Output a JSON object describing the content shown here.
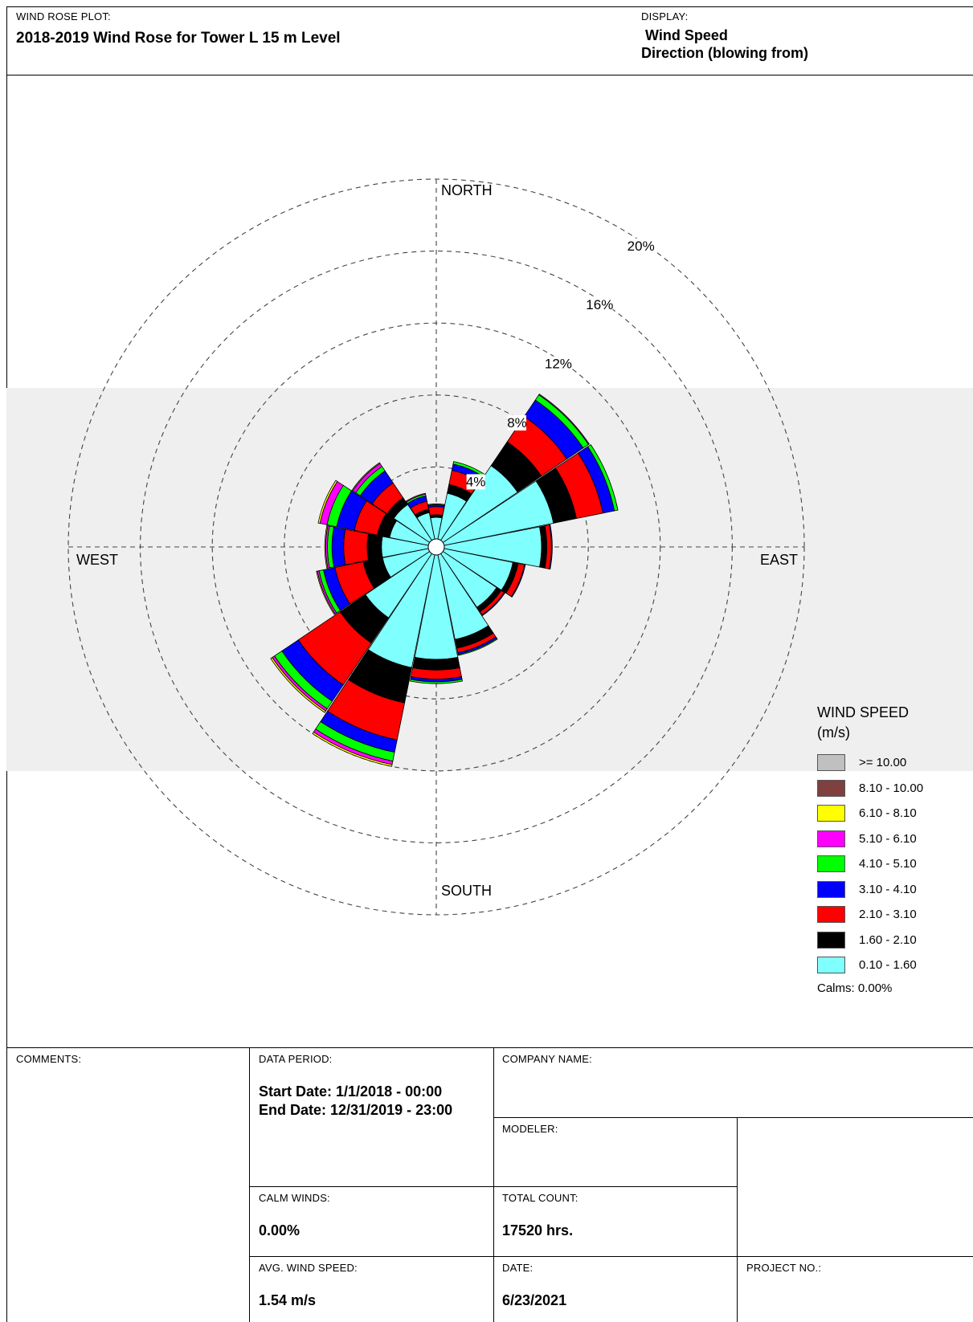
{
  "header": {
    "plot_caption": "WIND ROSE PLOT:",
    "plot_title": "2018-2019 Wind Rose for Tower L 15 m Level",
    "display_caption": "DISPLAY:",
    "display_line1": "Wind Speed",
    "display_line2": "Direction (blowing from)"
  },
  "footer": {
    "comments_caption": "COMMENTS:",
    "data_period_caption": "DATA PERIOD:",
    "start_date": "Start Date: 1/1/2018 - 00:00",
    "end_date": "End Date: 12/31/2019 - 23:00",
    "company_caption": "COMPANY NAME:",
    "modeler_caption": "MODELER:",
    "calm_caption": "CALM WINDS:",
    "calm_value": "0.00%",
    "count_caption": "TOTAL COUNT:",
    "count_value": "17520 hrs.",
    "avg_caption": "AVG. WIND SPEED:",
    "avg_value": "1.54 m/s",
    "date_caption": "DATE:",
    "date_value": "6/23/2021",
    "project_caption": "PROJECT NO.:"
  },
  "chart_data": {
    "type": "wind-rose",
    "compass_labels": [
      "NORTH",
      "EAST",
      "SOUTH",
      "WEST"
    ],
    "ring_values": [
      4,
      8,
      12,
      16,
      20
    ],
    "ring_labels": [
      "4%",
      "8%",
      "12%",
      "16%",
      "20%"
    ],
    "legend_title_line1": "WIND SPEED",
    "legend_title_line2": "(m/s)",
    "calms_label": "Calms: 0.00%",
    "bins": [
      {
        "label": "0.10 - 1.60",
        "color": "#80FFFF"
      },
      {
        "label": "1.60 - 2.10",
        "color": "#000000"
      },
      {
        "label": "2.10 - 3.10",
        "color": "#FF0000"
      },
      {
        "label": "3.10 - 4.10",
        "color": "#0000FF"
      },
      {
        "label": "4.10 - 5.10",
        "color": "#00FF00"
      },
      {
        "label": "5.10 - 6.10",
        "color": "#FF00FF"
      },
      {
        "label": "6.10 - 8.10",
        "color": "#FFFF00"
      },
      {
        "label": "8.10 - 10.00",
        "color": "#804040"
      },
      {
        "label": ">= 10.00",
        "color": "#C0C0C0"
      }
    ],
    "legend_order": [
      8,
      7,
      6,
      5,
      4,
      3,
      2,
      1,
      0
    ],
    "directions": [
      "N",
      "NNE",
      "NE",
      "ENE",
      "E",
      "ESE",
      "SE",
      "SSE",
      "S",
      "SSW",
      "SW",
      "WSW",
      "W",
      "WNW",
      "NW",
      "NNW"
    ],
    "petals": [
      {
        "dir": "N",
        "values": [
          1.2,
          0.15,
          0.45,
          0.1,
          0.05,
          0,
          0,
          0,
          0
        ]
      },
      {
        "dir": "NNE",
        "values": [
          2.6,
          0.5,
          0.8,
          0.35,
          0.15,
          0,
          0,
          0,
          0
        ]
      },
      {
        "dir": "NE",
        "values": [
          5.0,
          1.6,
          1.7,
          1.1,
          0.35,
          0.05,
          0,
          0,
          0
        ]
      },
      {
        "dir": "ENE",
        "values": [
          6.2,
          1.3,
          1.5,
          0.65,
          0.2,
          0,
          0,
          0,
          0
        ]
      },
      {
        "dir": "E",
        "values": [
          5.4,
          0.3,
          0.25,
          0.05,
          0,
          0,
          0,
          0,
          0
        ]
      },
      {
        "dir": "ESE",
        "values": [
          3.9,
          0.3,
          0.35,
          0.05,
          0,
          0,
          0,
          0,
          0
        ]
      },
      {
        "dir": "SE",
        "values": [
          3.6,
          0.3,
          0.2,
          0.05,
          0,
          0,
          0,
          0,
          0
        ]
      },
      {
        "dir": "SSE",
        "values": [
          4.8,
          0.5,
          0.25,
          0.1,
          0.05,
          0,
          0,
          0,
          0
        ]
      },
      {
        "dir": "S",
        "values": [
          5.8,
          0.6,
          0.5,
          0.15,
          0.1,
          0,
          0,
          0,
          0
        ]
      },
      {
        "dir": "SSW",
        "values": [
          6.4,
          2.0,
          2.1,
          0.7,
          0.5,
          0.2,
          0.1,
          0,
          0
        ]
      },
      {
        "dir": "SW",
        "values": [
          4.3,
          1.7,
          2.8,
          1.1,
          0.5,
          0.15,
          0.1,
          0,
          0
        ]
      },
      {
        "dir": "WSW",
        "values": [
          2.6,
          1.1,
          1.6,
          0.65,
          0.25,
          0.1,
          0.05,
          0,
          0
        ]
      },
      {
        "dir": "W",
        "values": [
          2.6,
          0.8,
          1.3,
          0.65,
          0.25,
          0.1,
          0.05,
          0,
          0
        ]
      },
      {
        "dir": "WNW",
        "values": [
          2.2,
          0.7,
          1.3,
          1.0,
          0.55,
          0.4,
          0.1,
          0,
          0
        ]
      },
      {
        "dir": "NW",
        "values": [
          2.4,
          0.45,
          1.0,
          0.8,
          0.3,
          0.2,
          0.05,
          0,
          0
        ]
      },
      {
        "dir": "NNW",
        "values": [
          1.5,
          0.2,
          0.45,
          0.3,
          0.1,
          0.05,
          0,
          0,
          0
        ]
      }
    ]
  }
}
